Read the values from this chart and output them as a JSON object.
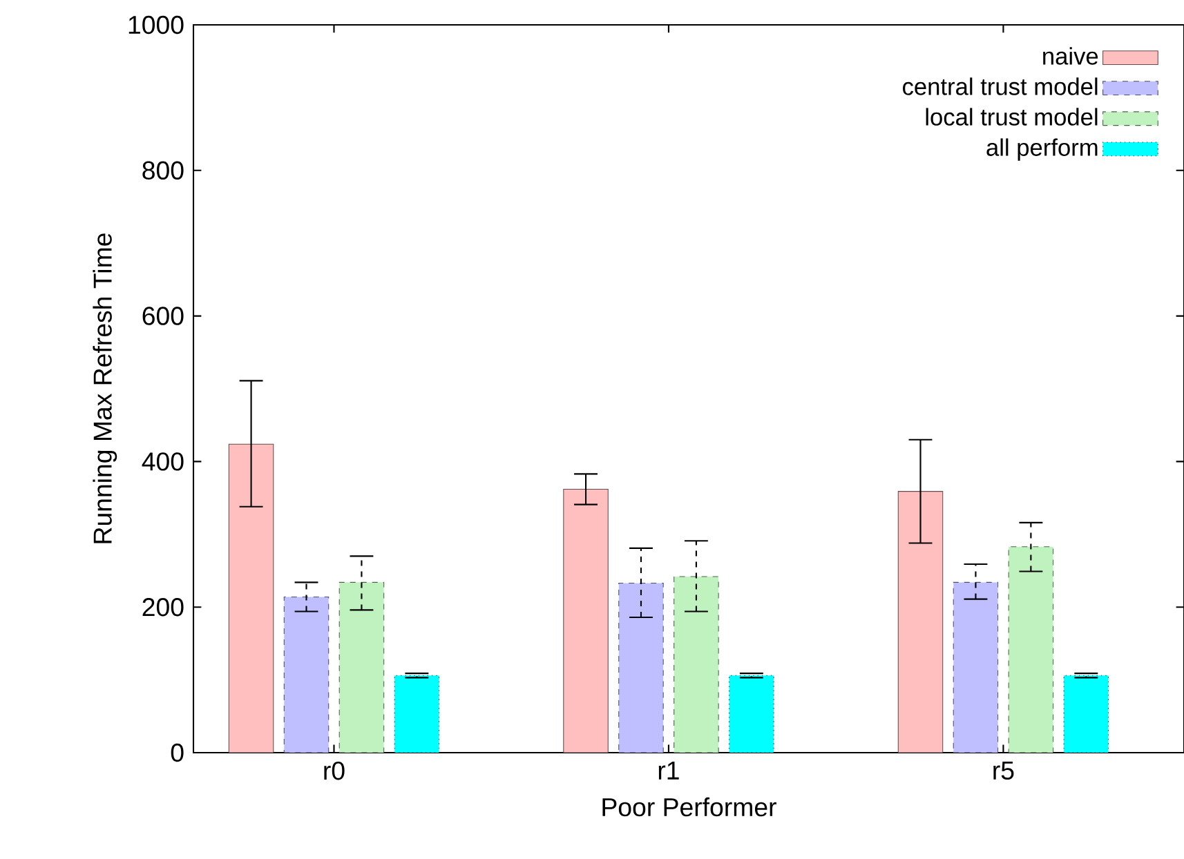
{
  "chart_data": {
    "type": "bar",
    "xlabel": "Poor Performer",
    "ylabel": "Running Max Refresh Time",
    "categories": [
      "r0",
      "r1",
      "r5"
    ],
    "series": [
      {
        "name": "naive",
        "color": "#ffbfbf",
        "values": [
          424,
          362,
          359
        ],
        "errors": [
          [
            338,
            511
          ],
          [
            341,
            383
          ],
          [
            288,
            430
          ]
        ]
      },
      {
        "name": "central trust model",
        "color": "#bfbfff",
        "values": [
          214,
          233,
          234
        ],
        "errors": [
          [
            194,
            234
          ],
          [
            186,
            281
          ],
          [
            211,
            259
          ]
        ]
      },
      {
        "name": "local trust model",
        "color": "#bff2bf",
        "values": [
          234,
          242,
          283
        ],
        "errors": [
          [
            196,
            270
          ],
          [
            194,
            291
          ],
          [
            249,
            316
          ]
        ]
      },
      {
        "name": "all perform",
        "color": "#00ffff",
        "values": [
          106,
          106,
          106
        ],
        "errors": [
          [
            103,
            109
          ],
          [
            103,
            109
          ],
          [
            103,
            109
          ]
        ]
      }
    ],
    "ylim": [
      0,
      1000
    ],
    "yticks": [
      0,
      200,
      400,
      600,
      800,
      1000
    ],
    "grid": false,
    "legend": "top right"
  }
}
